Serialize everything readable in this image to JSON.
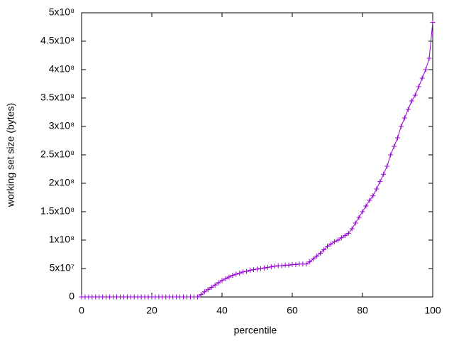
{
  "chart_data": {
    "type": "line",
    "xlabel": "percentile",
    "ylabel": "working set size (bytes)",
    "x": [
      0,
      1,
      2,
      3,
      4,
      5,
      6,
      7,
      8,
      9,
      10,
      11,
      12,
      13,
      14,
      15,
      16,
      17,
      18,
      19,
      20,
      21,
      22,
      23,
      24,
      25,
      26,
      27,
      28,
      29,
      30,
      31,
      32,
      33,
      34,
      35,
      36,
      37,
      38,
      39,
      40,
      41,
      42,
      43,
      44,
      45,
      46,
      47,
      48,
      49,
      50,
      51,
      52,
      53,
      54,
      55,
      56,
      57,
      58,
      59,
      60,
      61,
      62,
      63,
      64,
      65,
      66,
      67,
      68,
      69,
      70,
      71,
      72,
      73,
      74,
      75,
      76,
      77,
      78,
      79,
      80,
      81,
      82,
      83,
      84,
      85,
      86,
      87,
      88,
      89,
      90,
      91,
      92,
      93,
      94,
      95,
      96,
      97,
      98,
      99,
      100
    ],
    "series": [
      {
        "name": "working set size",
        "color": "#9400d3",
        "values": [
          0,
          0,
          0,
          0,
          0,
          0,
          0,
          0,
          0,
          0,
          0,
          0,
          0,
          0,
          0,
          0,
          0,
          0,
          0,
          0,
          0,
          0,
          0,
          0,
          0,
          0,
          0,
          0,
          0,
          0,
          0,
          0,
          0,
          0,
          4000000,
          9000000,
          13000000,
          17000000,
          21000000,
          25000000,
          29000000,
          32000000,
          35000000,
          38000000,
          40000000,
          42000000,
          44000000,
          45000000,
          47000000,
          48000000,
          49000000,
          50000000,
          51000000,
          52000000,
          53000000,
          54000000,
          55000000,
          55000000,
          56000000,
          56000000,
          57000000,
          57000000,
          58000000,
          58000000,
          58000000,
          62000000,
          67000000,
          72000000,
          77000000,
          83000000,
          89000000,
          93000000,
          97000000,
          100000000,
          104000000,
          108000000,
          112000000,
          120000000,
          130000000,
          140000000,
          150000000,
          160000000,
          170000000,
          178000000,
          190000000,
          203000000,
          216000000,
          230000000,
          250000000,
          265000000,
          280000000,
          300000000,
          315000000,
          330000000,
          345000000,
          355000000,
          370000000,
          385000000,
          400000000,
          420000000,
          483000000
        ]
      }
    ],
    "xlim": [
      0,
      100
    ],
    "xticks": [
      0,
      20,
      40,
      60,
      80,
      100
    ],
    "ylim": [
      0,
      500000000
    ],
    "yticks": [
      0,
      {
        "value": 50000000,
        "label": "5x10⁷"
      },
      {
        "value": 100000000,
        "label": "1x10⁸"
      },
      {
        "value": 150000000,
        "label": "1.5x10⁸"
      },
      {
        "value": 200000000,
        "label": "2x10⁸"
      },
      {
        "value": 250000000,
        "label": "2.5x10⁸"
      },
      {
        "value": 300000000,
        "label": "3x10⁸"
      },
      {
        "value": 350000000,
        "label": "3.5x10⁸"
      },
      {
        "value": 400000000,
        "label": "4x10⁸"
      },
      {
        "value": 450000000,
        "label": "4.5x10⁸"
      },
      {
        "value": 500000000,
        "label": "5x10⁸"
      }
    ],
    "grid": false
  }
}
